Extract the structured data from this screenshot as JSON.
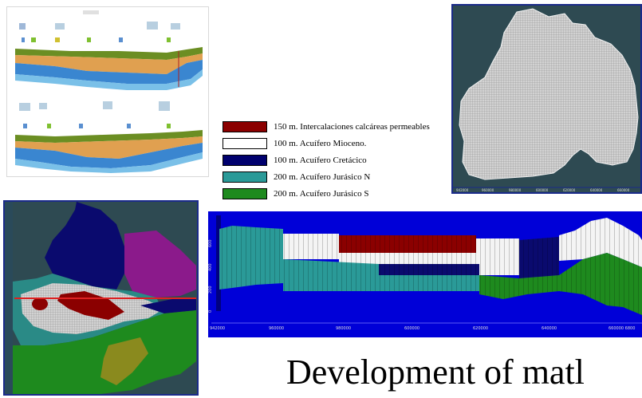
{
  "legend": {
    "items": [
      {
        "label": "150 m. Intercalaciones calcáreas permeables",
        "color": "#8b0000"
      },
      {
        "label": "100 m. Acuífero Mioceno.",
        "color": "#ffffff"
      },
      {
        "label": "100 m. Acuífero Cretácico",
        "color": "#00006e"
      },
      {
        "label": "200 m. Acuífero Jurásico N",
        "color": "#2a9a98"
      },
      {
        "label": "200 m. Acuífero Jurásico S",
        "color": "#1e8a1e"
      }
    ]
  },
  "caption": "Development of matl",
  "plan_grid": {
    "axis_ticks": [
      "942000",
      "960000",
      "980000",
      "600000",
      "620000",
      "640000",
      "660000"
    ]
  },
  "model_section": {
    "axis_ticks": [
      "942000",
      "960000",
      "980000",
      "600000",
      "620000",
      "640000",
      "660000 6800"
    ],
    "y_ticks": [
      "600",
      "400",
      "200",
      "0"
    ]
  },
  "colors": {
    "background": "#ffffff",
    "grid_fill": "#c8c8c8",
    "dark_teal": "#2e4a52",
    "frame_blue": "#0000d8"
  }
}
